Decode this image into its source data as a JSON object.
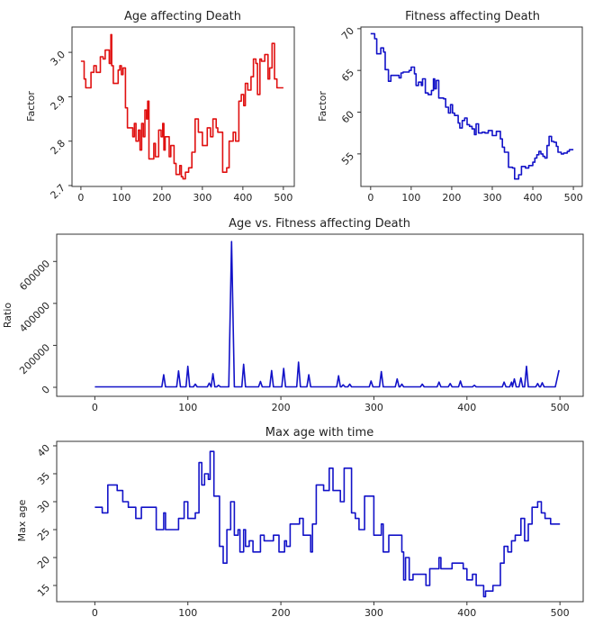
{
  "chart_data": [
    {
      "type": "line",
      "title": "Age affecting Death",
      "xlabel": "",
      "ylabel": "Factor",
      "xlim": [
        -22,
        527
      ],
      "ylim": [
        2.698,
        3.057
      ],
      "xticks": [
        0,
        100,
        200,
        300,
        400,
        500
      ],
      "yticks": [
        2.7,
        2.8,
        2.9,
        3.0
      ],
      "ytick_labels": [
        "2.7",
        "2.8",
        "2.9",
        "3.0"
      ],
      "color": "#e01010",
      "step": true,
      "x": [
        0,
        8,
        12,
        25,
        32,
        38,
        48,
        55,
        60,
        70,
        74,
        76,
        80,
        92,
        96,
        100,
        104,
        110,
        115,
        125,
        128,
        132,
        136,
        142,
        146,
        150,
        154,
        158,
        162,
        165,
        168,
        180,
        184,
        192,
        198,
        202,
        205,
        208,
        218,
        222,
        230,
        235,
        244,
        248,
        252,
        258,
        266,
        274,
        282,
        290,
        300,
        312,
        320,
        326,
        334,
        338,
        350,
        360,
        366,
        376,
        382,
        390,
        396,
        402,
        406,
        412,
        420,
        426,
        432,
        436,
        442,
        446,
        454,
        462,
        466,
        472,
        478,
        484,
        500
      ],
      "y": [
        2.98,
        2.94,
        2.92,
        2.955,
        2.97,
        2.955,
        2.99,
        2.985,
        3.005,
        2.975,
        3.04,
        2.97,
        2.93,
        2.96,
        2.97,
        2.95,
        2.965,
        2.875,
        2.83,
        2.83,
        2.81,
        2.84,
        2.8,
        2.825,
        2.78,
        2.84,
        2.81,
        2.87,
        2.85,
        2.89,
        2.76,
        2.795,
        2.765,
        2.825,
        2.81,
        2.84,
        2.78,
        2.81,
        2.765,
        2.79,
        2.75,
        2.725,
        2.745,
        2.72,
        2.715,
        2.73,
        2.74,
        2.775,
        2.85,
        2.82,
        2.79,
        2.83,
        2.81,
        2.85,
        2.83,
        2.82,
        2.73,
        2.74,
        2.8,
        2.82,
        2.8,
        2.89,
        2.905,
        2.88,
        2.93,
        2.915,
        2.945,
        2.985,
        2.975,
        2.905,
        2.985,
        2.98,
        2.995,
        2.94,
        2.965,
        3.02,
        2.94,
        2.92,
        2.92
      ]
    },
    {
      "type": "line",
      "title": "Fitness affecting Death",
      "xlabel": "",
      "ylabel": "Factor",
      "xlim": [
        -24,
        522
      ],
      "ylim": [
        51.1,
        70.2
      ],
      "xticks": [
        0,
        100,
        200,
        300,
        400,
        500
      ],
      "yticks": [
        55,
        60,
        65,
        70
      ],
      "ytick_labels": [
        "55",
        "60",
        "65",
        "70"
      ],
      "color": "#1212c8",
      "step": true,
      "x": [
        0,
        10,
        15,
        25,
        32,
        36,
        44,
        50,
        70,
        75,
        80,
        95,
        100,
        108,
        112,
        118,
        125,
        128,
        135,
        142,
        150,
        155,
        158,
        162,
        168,
        180,
        185,
        192,
        197,
        202,
        207,
        216,
        220,
        226,
        232,
        238,
        244,
        250,
        256,
        260,
        266,
        275,
        282,
        290,
        300,
        310,
        320,
        325,
        330,
        340,
        350,
        355,
        365,
        372,
        382,
        390,
        400,
        405,
        410,
        415,
        420,
        425,
        430,
        435,
        440,
        446,
        452,
        458,
        462,
        470,
        476,
        485,
        490,
        500
      ],
      "y": [
        69.4,
        68.8,
        67.0,
        67.7,
        67.2,
        65.1,
        63.7,
        64.4,
        64.1,
        64.7,
        64.8,
        65.0,
        65.4,
        64.6,
        63.2,
        63.6,
        63.2,
        64.0,
        62.3,
        62.1,
        62.6,
        64.0,
        62.8,
        63.8,
        61.7,
        61.6,
        60.6,
        59.9,
        60.9,
        59.9,
        59.6,
        58.7,
        58.1,
        59.0,
        59.3,
        58.5,
        58.3,
        58.0,
        57.3,
        58.6,
        57.5,
        57.6,
        57.5,
        57.8,
        57.2,
        57.7,
        56.8,
        55.8,
        55.2,
        53.4,
        53.3,
        52.0,
        52.5,
        53.5,
        53.3,
        53.6,
        54.0,
        54.5,
        54.9,
        55.3,
        55.0,
        54.7,
        54.5,
        56.0,
        57.1,
        56.5,
        56.4,
        55.9,
        55.2,
        55.0,
        55.1,
        55.3,
        55.5,
        55.5
      ]
    },
    {
      "type": "line",
      "title": "Age vs. Fitness affecting Death",
      "xlabel": "",
      "ylabel": "Ratio",
      "xlim": [
        -41,
        525
      ],
      "ylim": [
        -43000,
        730000
      ],
      "xticks": [
        0,
        100,
        200,
        300,
        400,
        500
      ],
      "yticks": [
        0,
        200000,
        400000,
        600000
      ],
      "ytick_labels": [
        "0",
        "200000",
        "400000",
        "600000"
      ],
      "color": "#1212c8",
      "step": false,
      "x": [
        0,
        72,
        74,
        76,
        88,
        90,
        92,
        98,
        100,
        102,
        106,
        108,
        110,
        121,
        123,
        125,
        127,
        129,
        131,
        133,
        135,
        144,
        147,
        150,
        158,
        160,
        162,
        176,
        178,
        180,
        188,
        190,
        192,
        201,
        203,
        205,
        217,
        219,
        221,
        228,
        230,
        232,
        260,
        262,
        264,
        265,
        267,
        269,
        272,
        274,
        276,
        295,
        297,
        299,
        306,
        308,
        310,
        323,
        325,
        327,
        328,
        330,
        332,
        350,
        352,
        354,
        368,
        370,
        372,
        380,
        382,
        384,
        391,
        393,
        395,
        406,
        408,
        410,
        438,
        440,
        442,
        446,
        448,
        449,
        451,
        453,
        456,
        458,
        460,
        462,
        464,
        466,
        474,
        476,
        478,
        479,
        481,
        483,
        495,
        499
      ],
      "y": [
        2000,
        2000,
        60000,
        2000,
        2000,
        78000,
        2000,
        2000,
        100000,
        2000,
        2000,
        15000,
        2000,
        2000,
        20000,
        2000,
        65000,
        2000,
        2000,
        10000,
        2000,
        2000,
        695000,
        2000,
        2000,
        110000,
        2000,
        2000,
        28000,
        2000,
        2000,
        80000,
        2000,
        2000,
        90000,
        2000,
        2000,
        120000,
        2000,
        2000,
        60000,
        2000,
        2000,
        55000,
        2000,
        2000,
        12000,
        2000,
        2000,
        15000,
        2000,
        2000,
        30000,
        2000,
        2000,
        75000,
        2000,
        2000,
        40000,
        2000,
        2000,
        15000,
        2000,
        2000,
        15000,
        2000,
        2000,
        25000,
        2000,
        2000,
        18000,
        2000,
        2000,
        30000,
        2000,
        2000,
        10000,
        2000,
        2000,
        25000,
        2000,
        2000,
        25000,
        2000,
        40000,
        2000,
        2000,
        45000,
        2000,
        2000,
        100000,
        2000,
        2000,
        18000,
        2000,
        2000,
        22000,
        2000,
        2000,
        82000
      ]
    },
    {
      "type": "line",
      "title": "Max age with time",
      "xlabel": "",
      "ylabel": "Max age",
      "xlim": [
        -41,
        525
      ],
      "ylim": [
        12.1,
        40.8
      ],
      "xticks": [
        0,
        100,
        200,
        300,
        400,
        500
      ],
      "yticks": [
        15,
        20,
        25,
        30,
        35,
        40
      ],
      "ytick_labels": [
        "15",
        "20",
        "25",
        "30",
        "35",
        "40"
      ],
      "color": "#1212c8",
      "step": true,
      "x": [
        0,
        8,
        14,
        24,
        30,
        36,
        44,
        50,
        66,
        74,
        76,
        90,
        96,
        100,
        108,
        112,
        115,
        118,
        122,
        124,
        128,
        134,
        138,
        142,
        146,
        150,
        154,
        156,
        160,
        162,
        166,
        170,
        178,
        182,
        192,
        198,
        204,
        206,
        210,
        220,
        224,
        232,
        234,
        238,
        246,
        252,
        256,
        264,
        268,
        276,
        280,
        284,
        290,
        300,
        308,
        310,
        316,
        330,
        332,
        334,
        338,
        342,
        356,
        360,
        370,
        372,
        384,
        396,
        400,
        406,
        410,
        418,
        420,
        428,
        436,
        440,
        444,
        448,
        452,
        458,
        462,
        466,
        470,
        476,
        480,
        484,
        490,
        500
      ],
      "y": [
        29,
        28,
        33,
        32,
        30,
        29,
        27,
        29,
        25,
        28,
        25,
        27,
        30,
        27,
        28,
        37,
        33,
        35,
        34,
        39,
        31,
        22,
        19,
        25,
        30,
        24,
        25,
        21,
        25,
        22,
        23,
        21,
        24,
        23,
        24,
        21,
        23,
        22,
        26,
        27,
        24,
        21,
        26,
        33,
        32,
        36,
        32,
        30,
        36,
        28,
        27,
        25,
        31,
        24,
        26,
        21,
        24,
        21,
        16,
        20,
        16,
        17,
        15,
        18,
        20,
        18,
        19,
        18,
        16,
        17,
        15,
        13,
        14,
        15,
        19,
        22,
        21,
        23,
        24,
        27,
        23,
        26,
        29,
        30,
        28,
        27,
        26,
        26
      ]
    }
  ]
}
